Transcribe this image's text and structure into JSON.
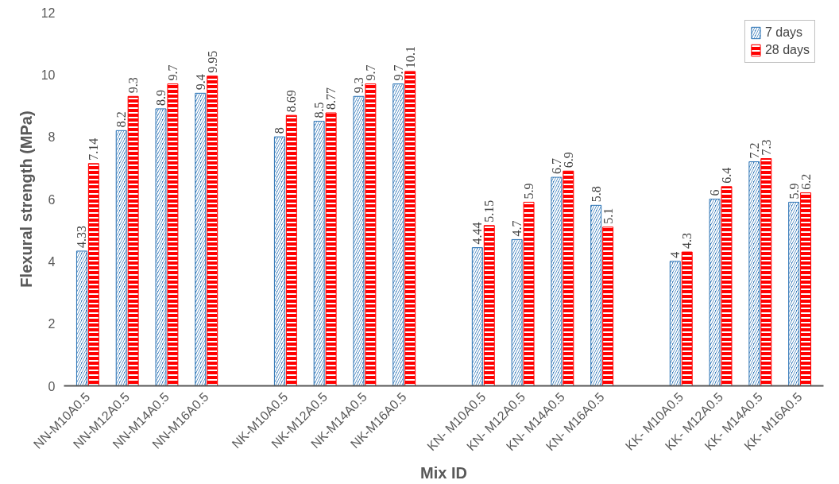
{
  "chart_data": {
    "type": "bar",
    "xlabel": "Mix ID",
    "ylabel": "Flexural strength (MPa)",
    "categories": [
      "NN-M10A0.5",
      "NN-M12A0.5",
      "NN-M14A0.5",
      "NN-M16A0.5",
      null,
      "NK-M10A0.5",
      "NK-M12A0.5",
      "NK-M14A0.5",
      "NK-M16A0.5",
      null,
      "KN- M10A0.5",
      "KN- M12A0.5",
      "KN- M14A0.5",
      "KN- M16A0.5",
      null,
      "KK- M10A0.5",
      "KK- M12A0.5",
      "KK- M14A0.5",
      "KK- M16A0.5"
    ],
    "series": [
      {
        "name": "7 days",
        "color": "#2e75b6",
        "values": [
          4.33,
          8.2,
          8.9,
          9.4,
          null,
          8,
          8.5,
          9.3,
          9.7,
          null,
          4.44,
          4.7,
          6.7,
          5.8,
          null,
          4,
          6,
          7.2,
          5.9
        ]
      },
      {
        "name": "28 days",
        "color": "#ff0000",
        "values": [
          7.14,
          9.3,
          9.7,
          9.95,
          null,
          8.69,
          8.77,
          9.7,
          10.1,
          null,
          5.15,
          5.9,
          6.9,
          5.1,
          null,
          4.3,
          6.4,
          7.3,
          6.2
        ]
      }
    ],
    "ylim": [
      0,
      12
    ],
    "yticks": [
      0,
      2,
      4,
      6,
      8,
      10,
      12
    ],
    "grid": false,
    "legend": "top right",
    "data_labels": true
  }
}
